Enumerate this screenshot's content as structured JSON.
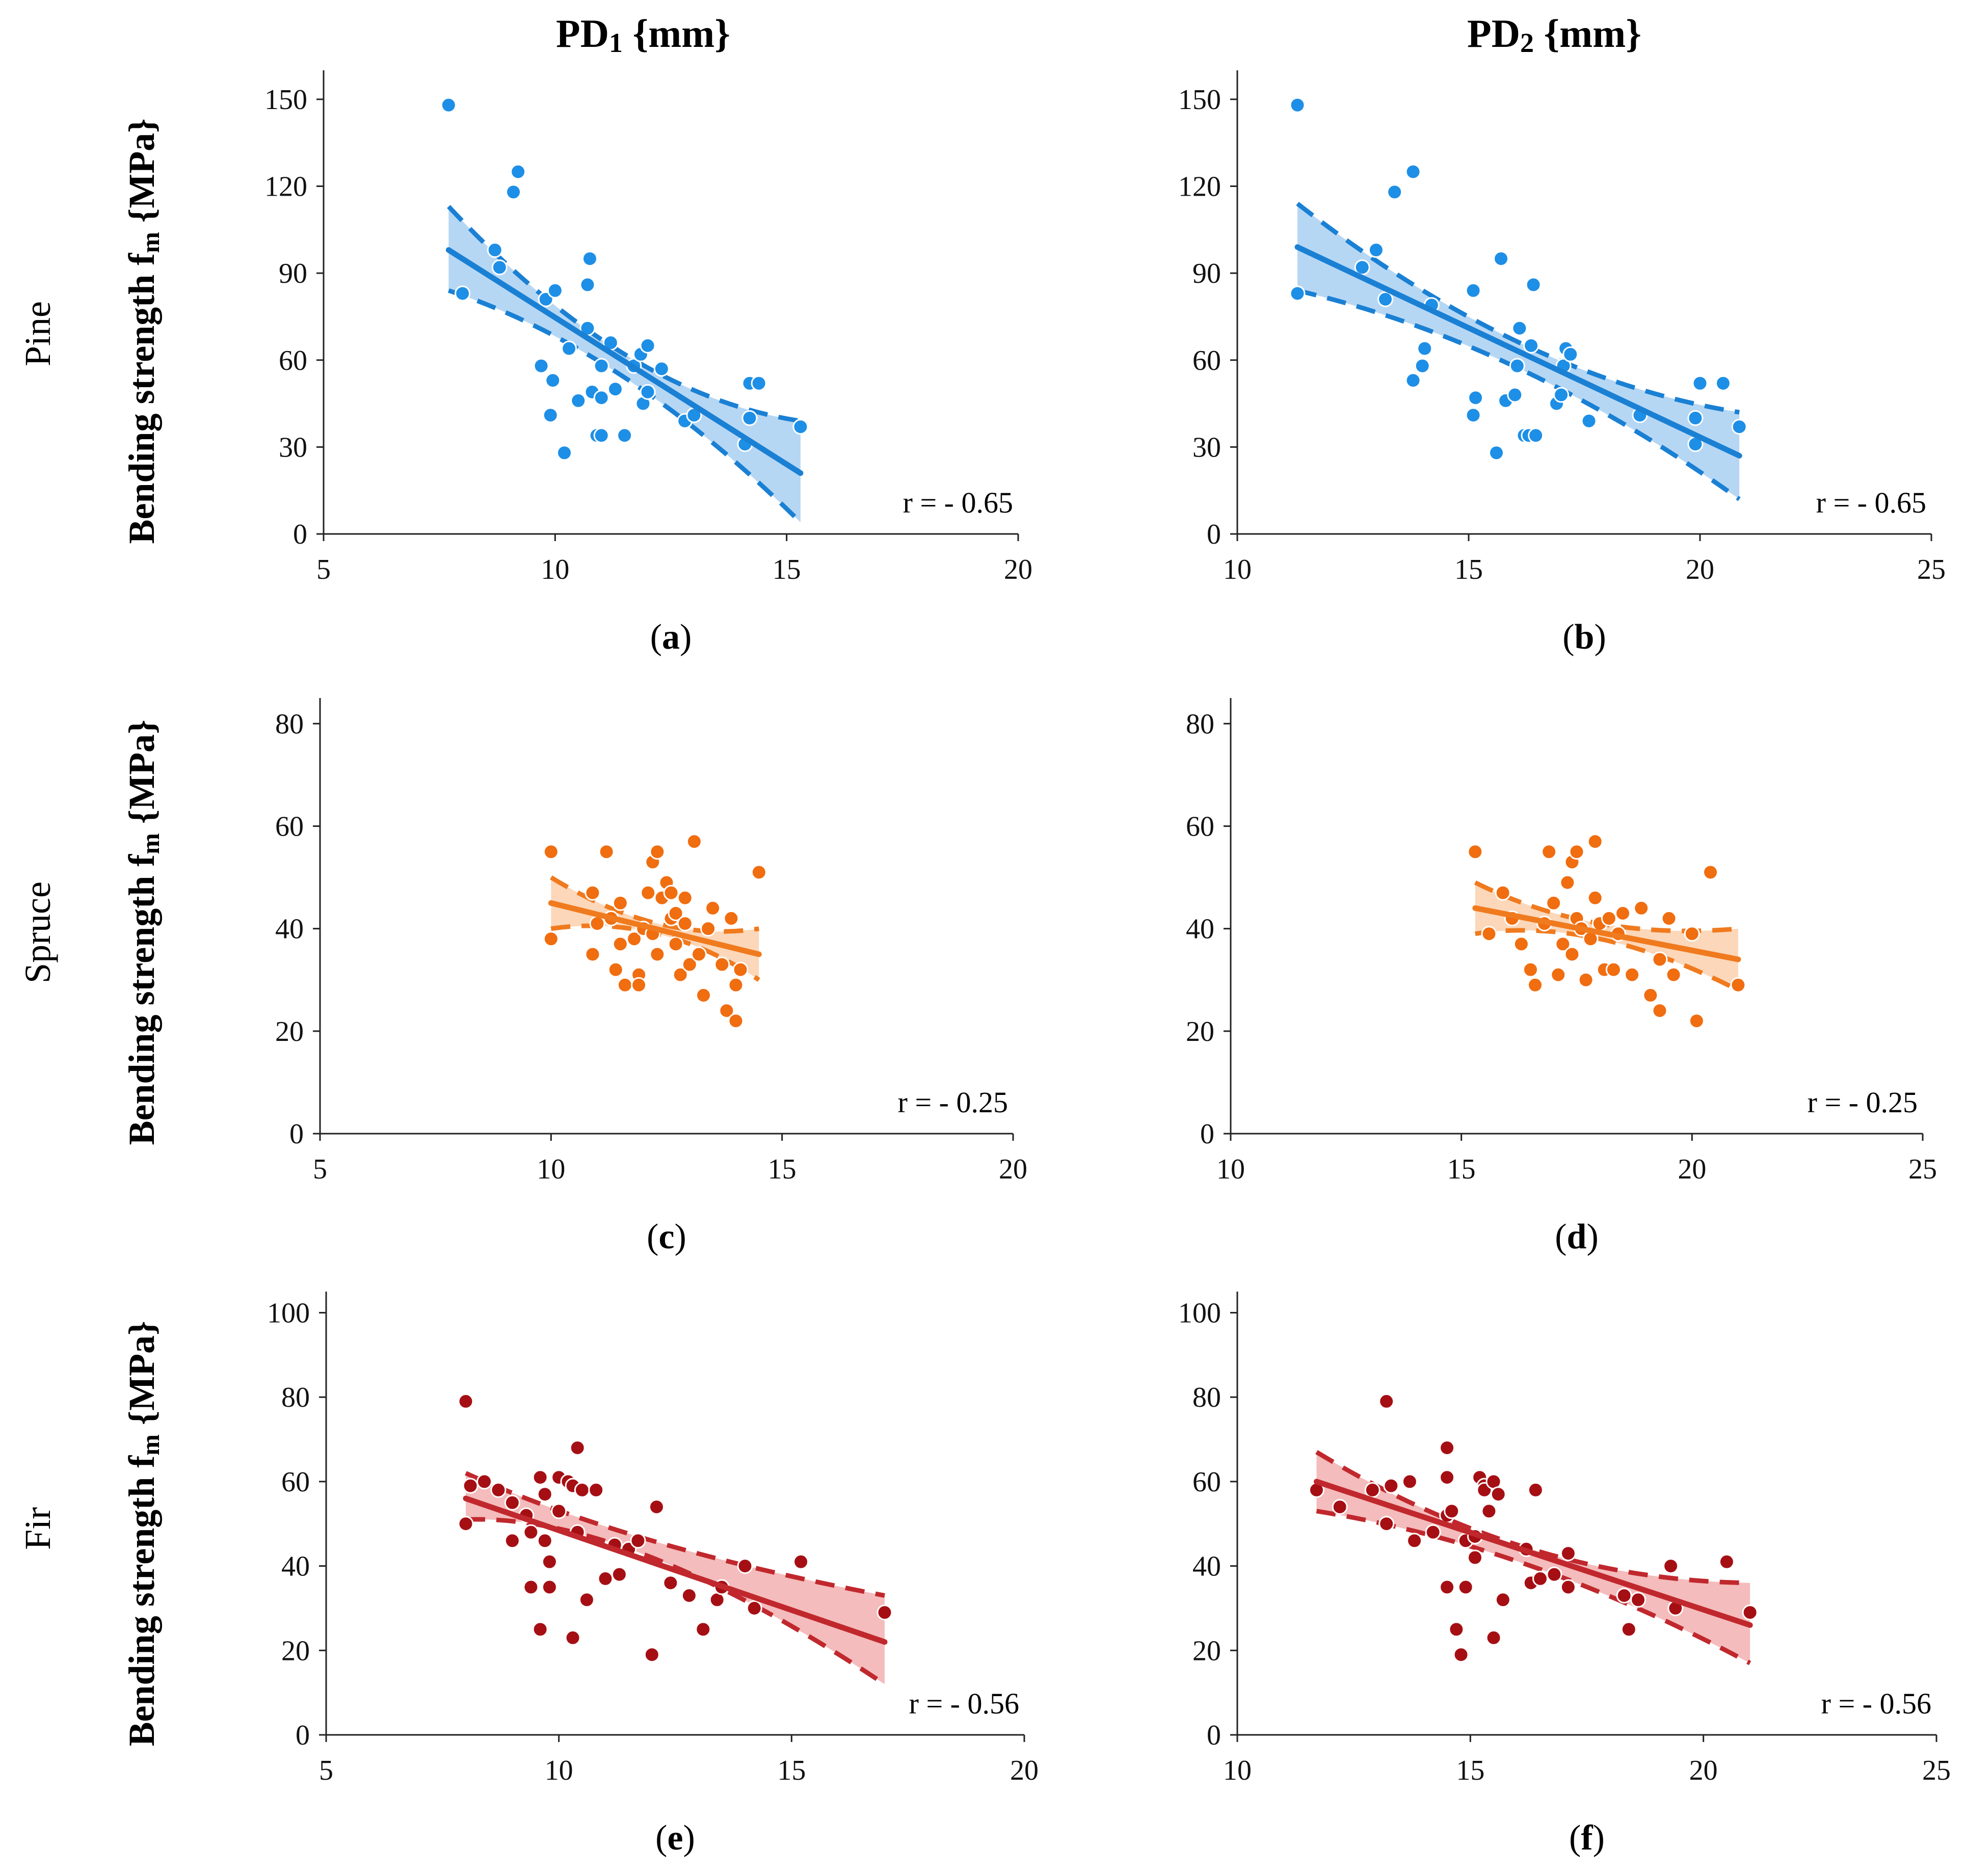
{
  "figure": {
    "column_titles": [
      {
        "main": "PD",
        "sub": "1",
        "unit": " {mm}"
      },
      {
        "main": "PD",
        "sub": "2",
        "unit": " {mm}"
      }
    ],
    "row_labels": [
      "Pine",
      "Spruce",
      "Fir"
    ],
    "ylabel": {
      "main": "Bending strength f",
      "sub": "m",
      "unit": " {MPa}"
    },
    "colors": {
      "pine": "#1a80d4",
      "pine_band": "#a9d0f2",
      "pine_dot": "#1e8fe6",
      "spruce": "#f07a1e",
      "spruce_band": "#fbd0ad",
      "spruce_dot": "#f06d10",
      "fir": "#c0282d",
      "fir_band": "#f2b0b0",
      "fir_dot": "#a50f14"
    }
  },
  "chart_data": [
    {
      "id": "a",
      "type": "scatter",
      "species": "pine",
      "label": "a",
      "xlabel": "PD1 {mm}",
      "ylabel": "Bending strength fm {MPa}",
      "xlim": [
        5,
        20
      ],
      "ylim": [
        0,
        160
      ],
      "xticks": [
        "5",
        "10",
        "15",
        "20"
      ],
      "yticks": [
        "0",
        "30",
        "60",
        "90",
        "120",
        "150"
      ],
      "r_text": "r = - 0.65",
      "points": [
        [
          7.7,
          148
        ],
        [
          8,
          83
        ],
        [
          8.7,
          98
        ],
        [
          8.8,
          92
        ],
        [
          9.1,
          118
        ],
        [
          9.2,
          125
        ],
        [
          9.7,
          58
        ],
        [
          9.8,
          81
        ],
        [
          9.9,
          41
        ],
        [
          10,
          84
        ],
        [
          9.95,
          53
        ],
        [
          10.2,
          28
        ],
        [
          10.3,
          64
        ],
        [
          10.5,
          46
        ],
        [
          10.7,
          71
        ],
        [
          10.7,
          86
        ],
        [
          10.75,
          95
        ],
        [
          10.8,
          49
        ],
        [
          10.9,
          34
        ],
        [
          11,
          34
        ],
        [
          11,
          47
        ],
        [
          11,
          58
        ],
        [
          11.2,
          66
        ],
        [
          11.3,
          50
        ],
        [
          11.5,
          34
        ],
        [
          11.7,
          58
        ],
        [
          11.85,
          62
        ],
        [
          11.9,
          45
        ],
        [
          12,
          49
        ],
        [
          12,
          65
        ],
        [
          12.3,
          57
        ],
        [
          12.8,
          39
        ],
        [
          13,
          41
        ],
        [
          14.1,
          31
        ],
        [
          14.2,
          40
        ],
        [
          14.2,
          52
        ],
        [
          14.4,
          52
        ],
        [
          15.3,
          37
        ]
      ],
      "fit": {
        "x0": 7.7,
        "y0": 98,
        "x1": 15.3,
        "y1": 21
      },
      "ci_upper": [
        [
          7.7,
          113
        ],
        [
          11.5,
          62
        ],
        [
          15.3,
          39
        ]
      ],
      "ci_lower": [
        [
          7.7,
          84
        ],
        [
          11.5,
          54
        ],
        [
          15.3,
          4
        ]
      ]
    },
    {
      "id": "b",
      "type": "scatter",
      "species": "pine",
      "label": "b",
      "xlabel": "PD2 {mm}",
      "ylabel": "Bending strength fm {MPa}",
      "xlim": [
        10,
        25
      ],
      "ylim": [
        0,
        160
      ],
      "xticks": [
        "10",
        "15",
        "20",
        "25"
      ],
      "yticks": [
        "0",
        "30",
        "60",
        "90",
        "120",
        "150"
      ],
      "r_text": "r = - 0.65",
      "points": [
        [
          11.3,
          148
        ],
        [
          11.3,
          83
        ],
        [
          12.7,
          92
        ],
        [
          13,
          98
        ],
        [
          13.2,
          81
        ],
        [
          13.4,
          118
        ],
        [
          13.8,
          125
        ],
        [
          13.8,
          53
        ],
        [
          14,
          58
        ],
        [
          14.05,
          64
        ],
        [
          14.2,
          79
        ],
        [
          15.1,
          84
        ],
        [
          15.1,
          41
        ],
        [
          15.15,
          47
        ],
        [
          15.6,
          28
        ],
        [
          15.7,
          95
        ],
        [
          15.8,
          46
        ],
        [
          16,
          48
        ],
        [
          16.1,
          71
        ],
        [
          16.05,
          58
        ],
        [
          16.2,
          34
        ],
        [
          16.3,
          34
        ],
        [
          16.35,
          65
        ],
        [
          16.4,
          86
        ],
        [
          16.45,
          34
        ],
        [
          16.9,
          45
        ],
        [
          17,
          48
        ],
        [
          17.05,
          58
        ],
        [
          17.1,
          64
        ],
        [
          17.2,
          62
        ],
        [
          17.6,
          39
        ],
        [
          18.7,
          41
        ],
        [
          19.9,
          40
        ],
        [
          19.9,
          31
        ],
        [
          20,
          52
        ],
        [
          20.5,
          52
        ],
        [
          20.85,
          37
        ]
      ],
      "fit": {
        "x0": 11.3,
        "y0": 99,
        "x1": 20.85,
        "y1": 27
      },
      "ci_upper": [
        [
          11.3,
          114
        ],
        [
          16.1,
          66
        ],
        [
          20.85,
          42
        ]
      ],
      "ci_lower": [
        [
          11.3,
          84
        ],
        [
          16.1,
          57
        ],
        [
          20.85,
          12
        ]
      ]
    },
    {
      "id": "c",
      "type": "scatter",
      "species": "spruce",
      "label": "c",
      "xlabel": "PD1 {mm}",
      "ylabel": "Bending strength fm {MPa}",
      "xlim": [
        5,
        20
      ],
      "ylim": [
        0,
        85
      ],
      "xticks": [
        "5",
        "10",
        "15",
        "20"
      ],
      "yticks": [
        "0",
        "20",
        "40",
        "60",
        "80"
      ],
      "r_text": "r = - 0.25",
      "points": [
        [
          10,
          55
        ],
        [
          10,
          38
        ],
        [
          10.9,
          47
        ],
        [
          10.9,
          35
        ],
        [
          11,
          41
        ],
        [
          11.2,
          55
        ],
        [
          11.3,
          42
        ],
        [
          11.4,
          32
        ],
        [
          11.5,
          45
        ],
        [
          11.5,
          37
        ],
        [
          11.6,
          29
        ],
        [
          11.8,
          38
        ],
        [
          11.9,
          31
        ],
        [
          11.9,
          29
        ],
        [
          12,
          40
        ],
        [
          12.1,
          47
        ],
        [
          12.2,
          53
        ],
        [
          12.2,
          39
        ],
        [
          12.3,
          55
        ],
        [
          12.3,
          35
        ],
        [
          12.4,
          46
        ],
        [
          12.5,
          49
        ],
        [
          12.6,
          47
        ],
        [
          12.6,
          42
        ],
        [
          12.7,
          43
        ],
        [
          12.7,
          37
        ],
        [
          12.8,
          31
        ],
        [
          12.9,
          46
        ],
        [
          12.9,
          41
        ],
        [
          13,
          33
        ],
        [
          13.1,
          57
        ],
        [
          13.2,
          35
        ],
        [
          13.3,
          27
        ],
        [
          13.4,
          40
        ],
        [
          13.5,
          44
        ],
        [
          13.7,
          33
        ],
        [
          13.8,
          24
        ],
        [
          13.9,
          42
        ],
        [
          14,
          22
        ],
        [
          14,
          29
        ],
        [
          14.1,
          32
        ],
        [
          14.5,
          51
        ]
      ],
      "fit": {
        "x0": 10,
        "y0": 45,
        "x1": 14.5,
        "y1": 35
      },
      "ci_upper": [
        [
          10,
          50
        ],
        [
          12.3,
          41
        ],
        [
          14.5,
          40
        ]
      ],
      "ci_lower": [
        [
          10,
          40
        ],
        [
          12.3,
          39
        ],
        [
          14.5,
          30
        ]
      ]
    },
    {
      "id": "d",
      "type": "scatter",
      "species": "spruce",
      "label": "d",
      "xlabel": "PD2 {mm}",
      "ylabel": "Bending strength fm {MPa}",
      "xlim": [
        10,
        25
      ],
      "ylim": [
        0,
        85
      ],
      "xticks": [
        "10",
        "15",
        "20",
        "25"
      ],
      "yticks": [
        "0",
        "20",
        "40",
        "60",
        "80"
      ],
      "r_text": "r = - 0.25",
      "points": [
        [
          15.3,
          55
        ],
        [
          15.6,
          39
        ],
        [
          15.9,
          47
        ],
        [
          16.1,
          42
        ],
        [
          16.3,
          37
        ],
        [
          16.5,
          32
        ],
        [
          16.6,
          29
        ],
        [
          16.8,
          41
        ],
        [
          16.9,
          55
        ],
        [
          17,
          45
        ],
        [
          17.1,
          31
        ],
        [
          17.2,
          37
        ],
        [
          17.3,
          49
        ],
        [
          17.4,
          35
        ],
        [
          17.4,
          53
        ],
        [
          17.5,
          55
        ],
        [
          17.5,
          42
        ],
        [
          17.6,
          40
        ],
        [
          17.7,
          30
        ],
        [
          17.8,
          38
        ],
        [
          17.9,
          57
        ],
        [
          17.9,
          46
        ],
        [
          18,
          41
        ],
        [
          18.1,
          32
        ],
        [
          18.2,
          42
        ],
        [
          18.3,
          32
        ],
        [
          18.4,
          39
        ],
        [
          18.5,
          43
        ],
        [
          18.7,
          31
        ],
        [
          18.9,
          44
        ],
        [
          19.1,
          27
        ],
        [
          19.3,
          34
        ],
        [
          19.3,
          24
        ],
        [
          19.5,
          42
        ],
        [
          19.6,
          31
        ],
        [
          20,
          39
        ],
        [
          20.1,
          22
        ],
        [
          20.4,
          51
        ],
        [
          21,
          29
        ]
      ],
      "fit": {
        "x0": 15.3,
        "y0": 44,
        "x1": 21,
        "y1": 34
      },
      "ci_upper": [
        [
          15.3,
          49
        ],
        [
          18,
          41
        ],
        [
          21,
          40
        ]
      ],
      "ci_lower": [
        [
          15.3,
          39
        ],
        [
          18,
          38
        ],
        [
          21,
          28
        ]
      ]
    },
    {
      "id": "e",
      "type": "scatter",
      "species": "fir",
      "label": "e",
      "xlabel": "PD1 {mm}",
      "ylabel": "Bending strength fm {MPa}",
      "xlim": [
        5,
        20
      ],
      "ylim": [
        0,
        105
      ],
      "xticks": [
        "5",
        "10",
        "15",
        "20"
      ],
      "yticks": [
        "0",
        "20",
        "40",
        "60",
        "80",
        "100"
      ],
      "r_text": "r = - 0.56",
      "points": [
        [
          8,
          79
        ],
        [
          8,
          50
        ],
        [
          8.1,
          59
        ],
        [
          8.4,
          60
        ],
        [
          8.7,
          58
        ],
        [
          9,
          55
        ],
        [
          9,
          46
        ],
        [
          9.3,
          52
        ],
        [
          9.4,
          48
        ],
        [
          9.4,
          35
        ],
        [
          9.6,
          61
        ],
        [
          9.6,
          25
        ],
        [
          9.7,
          57
        ],
        [
          9.7,
          46
        ],
        [
          9.8,
          35
        ],
        [
          9.8,
          41
        ],
        [
          10,
          53
        ],
        [
          10,
          61
        ],
        [
          10.2,
          60
        ],
        [
          10.3,
          59
        ],
        [
          10.3,
          23
        ],
        [
          10.4,
          68
        ],
        [
          10.4,
          48
        ],
        [
          10.5,
          58
        ],
        [
          10.6,
          32
        ],
        [
          10.8,
          58
        ],
        [
          11,
          37
        ],
        [
          11.2,
          45
        ],
        [
          11.3,
          38
        ],
        [
          11.5,
          44
        ],
        [
          11.7,
          46
        ],
        [
          12,
          19
        ],
        [
          12.1,
          54
        ],
        [
          12.4,
          36
        ],
        [
          12.8,
          33
        ],
        [
          13.1,
          25
        ],
        [
          13.4,
          32
        ],
        [
          13.5,
          35
        ],
        [
          14,
          40
        ],
        [
          14.2,
          30
        ],
        [
          15.2,
          41
        ],
        [
          17,
          29
        ]
      ],
      "fit": {
        "x0": 8,
        "y0": 56,
        "x1": 17,
        "y1": 22
      },
      "ci_upper": [
        [
          8,
          62
        ],
        [
          12,
          46
        ],
        [
          17,
          33
        ]
      ],
      "ci_lower": [
        [
          8,
          51
        ],
        [
          12,
          42
        ],
        [
          17,
          12
        ]
      ]
    },
    {
      "id": "f",
      "type": "scatter",
      "species": "fir",
      "label": "f",
      "xlabel": "PD2 {mm}",
      "ylabel": "Bending strength fm {MPa}",
      "xlim": [
        10,
        25
      ],
      "ylim": [
        0,
        105
      ],
      "xticks": [
        "10",
        "15",
        "20",
        "25"
      ],
      "yticks": [
        "0",
        "20",
        "40",
        "60",
        "80",
        "100"
      ],
      "r_text": "r = - 0.56",
      "points": [
        [
          11.7,
          58
        ],
        [
          12.2,
          54
        ],
        [
          12.9,
          58
        ],
        [
          13.2,
          79
        ],
        [
          13.2,
          50
        ],
        [
          13.3,
          59
        ],
        [
          13.7,
          60
        ],
        [
          13.8,
          46
        ],
        [
          14.2,
          48
        ],
        [
          14.5,
          61
        ],
        [
          14.5,
          35
        ],
        [
          14.5,
          52
        ],
        [
          14.5,
          68
        ],
        [
          14.6,
          53
        ],
        [
          14.7,
          25
        ],
        [
          14.8,
          19
        ],
        [
          14.9,
          46
        ],
        [
          14.9,
          35
        ],
        [
          15.1,
          47
        ],
        [
          15.1,
          42
        ],
        [
          15.2,
          61
        ],
        [
          15.3,
          59
        ],
        [
          15.3,
          58
        ],
        [
          15.4,
          53
        ],
        [
          15.5,
          60
        ],
        [
          15.5,
          23
        ],
        [
          15.6,
          57
        ],
        [
          15.7,
          32
        ],
        [
          16.2,
          44
        ],
        [
          16.3,
          36
        ],
        [
          16.4,
          58
        ],
        [
          16.5,
          37
        ],
        [
          16.8,
          38
        ],
        [
          17.1,
          35
        ],
        [
          17.1,
          43
        ],
        [
          18.3,
          33
        ],
        [
          18.4,
          25
        ],
        [
          18.6,
          32
        ],
        [
          19.3,
          40
        ],
        [
          19.4,
          30
        ],
        [
          20.5,
          41
        ],
        [
          21,
          29
        ]
      ],
      "fit": {
        "x0": 11.7,
        "y0": 60,
        "x1": 21,
        "y1": 26
      },
      "ci_upper": [
        [
          11.7,
          67
        ],
        [
          16.3,
          44
        ],
        [
          21,
          36
        ]
      ],
      "ci_lower": [
        [
          11.7,
          53
        ],
        [
          16.3,
          40
        ],
        [
          21,
          17
        ]
      ]
    }
  ]
}
